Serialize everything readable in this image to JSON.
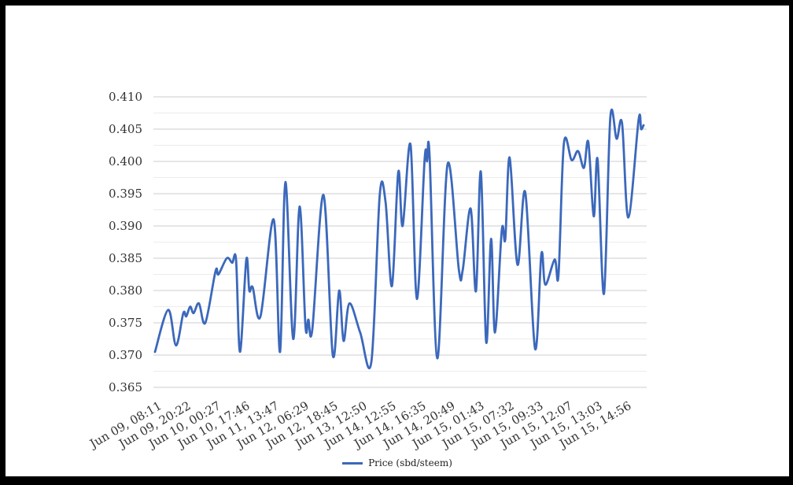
{
  "page": {
    "background_color": "#ffffff",
    "frame_color": "#000000"
  },
  "legend": {
    "label": "Price (sbd/steem)"
  },
  "chart_data": {
    "type": "line",
    "title": "",
    "legend_position": "bottom",
    "grid": {
      "horizontal_only": true,
      "major_color": "#cccccc",
      "minor_color": "#ececec",
      "major_step": 0.005,
      "minor_step": 0.0025
    },
    "ylim": [
      0.365,
      0.41
    ],
    "y_ticks": [
      0.365,
      0.37,
      0.375,
      0.38,
      0.385,
      0.39,
      0.395,
      0.4,
      0.405,
      0.41
    ],
    "x_tick_labels": [
      "Jun 09, 08:11",
      "Jun 09, 20:22",
      "Jun 10, 00:27",
      "Jun 10, 17:46",
      "Jun 11, 13:47",
      "Jun 12, 06:29",
      "Jun 12, 18:45",
      "Jun 13, 12:50",
      "Jun 14, 12:55",
      "Jun 14, 16:35",
      "Jun 14, 20:49",
      "Jun 15, 01:43",
      "Jun 15, 07:32",
      "Jun 15, 09:33",
      "Jun 15, 12:07",
      "Jun 15, 13:03",
      "Jun 15, 14:56"
    ],
    "series": [
      {
        "name": "Price (sbd/steem)",
        "color": "#3b68bb",
        "points": [
          [
            0.0,
            0.3705
          ],
          [
            0.027,
            0.377
          ],
          [
            0.043,
            0.3715
          ],
          [
            0.058,
            0.3765
          ],
          [
            0.064,
            0.376
          ],
          [
            0.072,
            0.3775
          ],
          [
            0.079,
            0.3765
          ],
          [
            0.09,
            0.378
          ],
          [
            0.103,
            0.375
          ],
          [
            0.124,
            0.383
          ],
          [
            0.13,
            0.3825
          ],
          [
            0.147,
            0.385
          ],
          [
            0.158,
            0.3843
          ],
          [
            0.166,
            0.3847
          ],
          [
            0.174,
            0.3705
          ],
          [
            0.187,
            0.3848
          ],
          [
            0.193,
            0.38
          ],
          [
            0.2,
            0.3805
          ],
          [
            0.216,
            0.376
          ],
          [
            0.243,
            0.391
          ],
          [
            0.256,
            0.3705
          ],
          [
            0.267,
            0.3968
          ],
          [
            0.283,
            0.3725
          ],
          [
            0.296,
            0.393
          ],
          [
            0.308,
            0.3745
          ],
          [
            0.314,
            0.3755
          ],
          [
            0.322,
            0.374
          ],
          [
            0.345,
            0.3948
          ],
          [
            0.364,
            0.37
          ],
          [
            0.377,
            0.38
          ],
          [
            0.386,
            0.3722
          ],
          [
            0.398,
            0.378
          ],
          [
            0.42,
            0.3735
          ],
          [
            0.443,
            0.369
          ],
          [
            0.46,
            0.3948
          ],
          [
            0.472,
            0.3937
          ],
          [
            0.485,
            0.3807
          ],
          [
            0.498,
            0.3984
          ],
          [
            0.507,
            0.39
          ],
          [
            0.523,
            0.4026
          ],
          [
            0.536,
            0.3787
          ],
          [
            0.552,
            0.4004
          ],
          [
            0.557,
            0.4
          ],
          [
            0.562,
            0.401
          ],
          [
            0.578,
            0.3695
          ],
          [
            0.599,
            0.3996
          ],
          [
            0.622,
            0.3832
          ],
          [
            0.63,
            0.3832
          ],
          [
            0.646,
            0.3927
          ],
          [
            0.657,
            0.3799
          ],
          [
            0.667,
            0.3984
          ],
          [
            0.678,
            0.372
          ],
          [
            0.688,
            0.388
          ],
          [
            0.696,
            0.3735
          ],
          [
            0.71,
            0.3894
          ],
          [
            0.717,
            0.388
          ],
          [
            0.726,
            0.4006
          ],
          [
            0.742,
            0.384
          ],
          [
            0.758,
            0.3952
          ],
          [
            0.778,
            0.371
          ],
          [
            0.791,
            0.3857
          ],
          [
            0.799,
            0.3809
          ],
          [
            0.818,
            0.3848
          ],
          [
            0.826,
            0.3824
          ],
          [
            0.837,
            0.4028
          ],
          [
            0.853,
            0.4002
          ],
          [
            0.866,
            0.4016
          ],
          [
            0.878,
            0.399
          ],
          [
            0.887,
            0.403
          ],
          [
            0.898,
            0.3915
          ],
          [
            0.906,
            0.4003
          ],
          [
            0.919,
            0.3795
          ],
          [
            0.932,
            0.4068
          ],
          [
            0.945,
            0.4035
          ],
          [
            0.956,
            0.4059
          ],
          [
            0.969,
            0.3913
          ],
          [
            0.99,
            0.4065
          ],
          [
            0.995,
            0.405
          ],
          [
            1.0,
            0.4056
          ]
        ]
      }
    ]
  }
}
